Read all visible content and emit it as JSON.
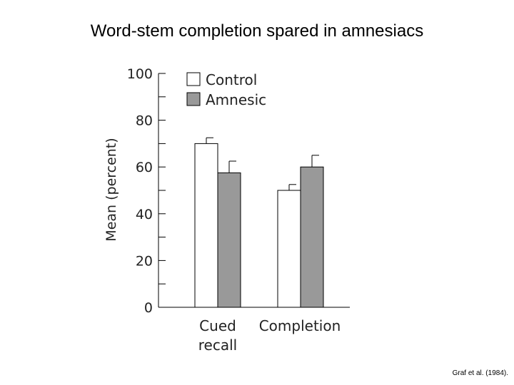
{
  "page": {
    "title": "Word-stem completion spared in amnesiacs",
    "citation": "Graf et al. (1984)."
  },
  "chart_data": {
    "type": "bar",
    "ylabel": "Mean (percent)",
    "xlabel": "",
    "ylim": [
      0,
      100
    ],
    "yticks": [
      "0",
      "20",
      "40",
      "60",
      "80",
      "100"
    ],
    "categories": [
      {
        "lines": [
          "Cued",
          "recall"
        ]
      },
      {
        "lines": [
          "Completion"
        ]
      }
    ],
    "series": [
      {
        "name": "Control",
        "color": "#ffffff",
        "values": [
          70,
          50
        ],
        "errors": [
          2.5,
          2.5
        ]
      },
      {
        "name": "Amnesic",
        "color": "#999999",
        "values": [
          57.5,
          60
        ],
        "errors": [
          5,
          5
        ]
      }
    ],
    "legend_position": "top-left",
    "grid": false
  }
}
